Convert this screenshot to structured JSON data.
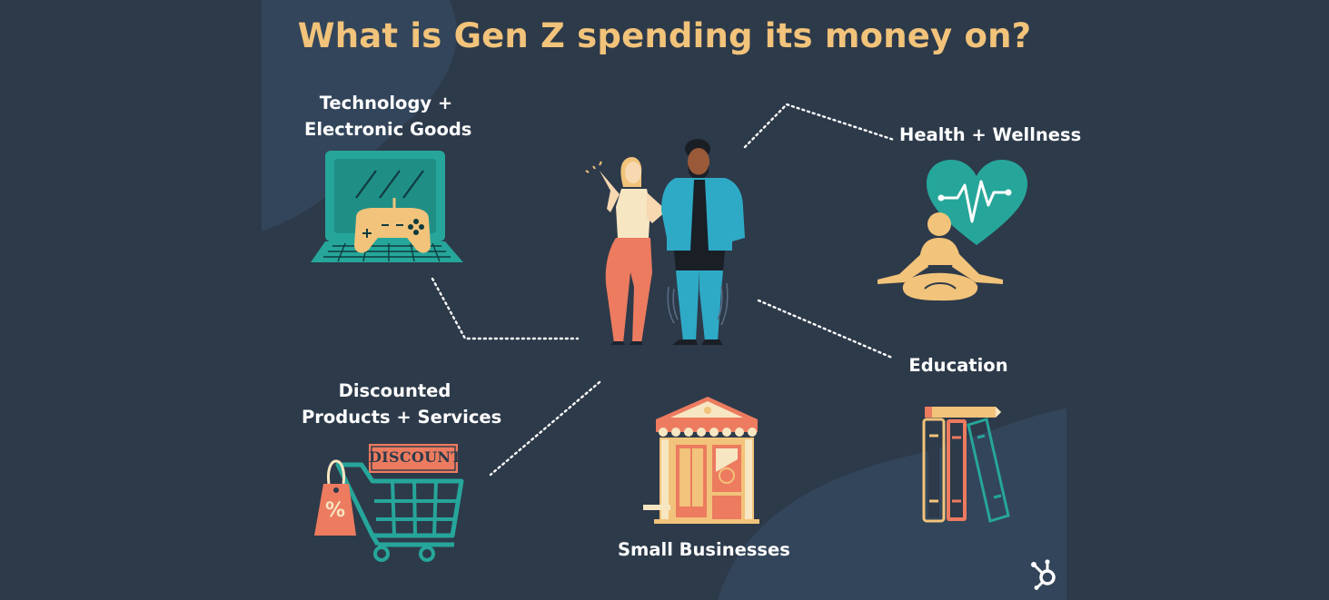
{
  "title": "What is Gen Z spending its money on?",
  "categories": {
    "technology": {
      "line1": "Technology +",
      "line2": "Electronic Goods",
      "icon": "laptop-gamepad-icon"
    },
    "health": {
      "label": "Health + Wellness",
      "icon": "heart-meditation-icon"
    },
    "education": {
      "label": "Education",
      "icon": "books-pencil-icon"
    },
    "discounted": {
      "line1": "Discounted",
      "line2": "Products + Services",
      "icon": "discount-cart-icon",
      "sign": "DISCOUNT",
      "tag_symbol": "%"
    },
    "small_business": {
      "label": "Small Businesses",
      "icon": "storefront-icon"
    }
  },
  "brand": {
    "logo_icon": "hubspot-sprocket-icon"
  },
  "colors": {
    "background": "#2d3a4a",
    "blob": "#344559",
    "title": "#f2c37a",
    "teal": "#26a69a",
    "coral": "#ec7b5f",
    "yellow": "#f2c37a",
    "cyan": "#2eaac6"
  }
}
